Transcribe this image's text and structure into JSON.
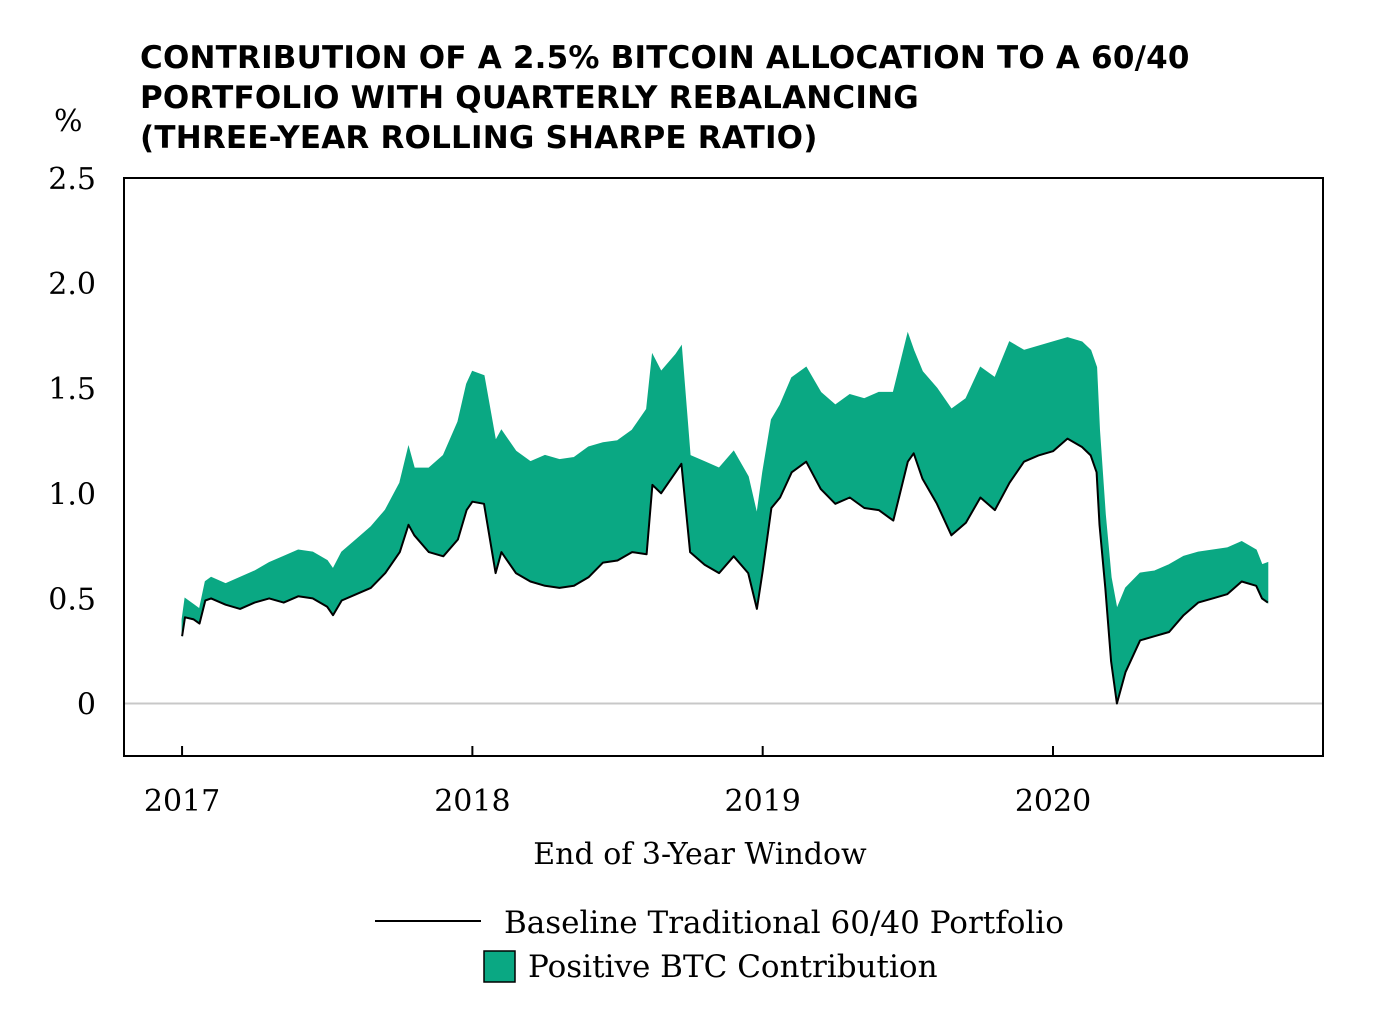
{
  "chart_data": {
    "type": "area",
    "title_lines": [
      "CONTRIBUTION OF A 2.5% BITCOIN ALLOCATION TO A 60/40",
      "PORTFOLIO WITH QUARTERLY REBALANCING",
      "(THREE-YEAR ROLLING SHARPE RATIO)"
    ],
    "ylabel": "%",
    "xlabel": "End of 3-Year Window",
    "ylim": [
      -0.25,
      2.5
    ],
    "xlim": [
      2016.8,
      2020.93
    ],
    "y_ticks": [
      {
        "value": 0,
        "label": "0"
      },
      {
        "value": 0.5,
        "label": "0.5"
      },
      {
        "value": 1.0,
        "label": "1.0"
      },
      {
        "value": 1.5,
        "label": "1.5"
      },
      {
        "value": 2.0,
        "label": "2.0"
      },
      {
        "value": 2.5,
        "label": "2.5"
      }
    ],
    "x_ticks": [
      {
        "value": 2017,
        "label": "2017"
      },
      {
        "value": 2018,
        "label": "2018"
      },
      {
        "value": 2019,
        "label": "2019"
      },
      {
        "value": 2020,
        "label": "2020"
      }
    ],
    "zero_line": true,
    "colors": {
      "baseline": "#000000",
      "contribution": "#0aa883",
      "zero_line": "#c8c8c8"
    },
    "legend": [
      {
        "label": "Baseline Traditional 60/40 Portfolio",
        "kind": "line"
      },
      {
        "label": "Positive BTC Contribution",
        "kind": "area"
      }
    ],
    "x": [
      2017.0,
      2017.01,
      2017.04,
      2017.06,
      2017.08,
      2017.1,
      2017.15,
      2017.2,
      2017.25,
      2017.3,
      2017.35,
      2017.4,
      2017.45,
      2017.5,
      2017.52,
      2017.55,
      2017.6,
      2017.65,
      2017.7,
      2017.75,
      2017.78,
      2017.8,
      2017.85,
      2017.9,
      2017.95,
      2017.98,
      2018.0,
      2018.04,
      2018.08,
      2018.1,
      2018.15,
      2018.2,
      2018.25,
      2018.3,
      2018.35,
      2018.4,
      2018.45,
      2018.5,
      2018.55,
      2018.6,
      2018.62,
      2018.65,
      2018.7,
      2018.72,
      2018.75,
      2018.8,
      2018.85,
      2018.9,
      2018.95,
      2018.98,
      2019.0,
      2019.03,
      2019.06,
      2019.1,
      2019.15,
      2019.2,
      2019.25,
      2019.3,
      2019.35,
      2019.4,
      2019.45,
      2019.5,
      2019.52,
      2019.55,
      2019.6,
      2019.65,
      2019.7,
      2019.75,
      2019.8,
      2019.85,
      2019.9,
      2019.95,
      2020.0,
      2020.05,
      2020.1,
      2020.13,
      2020.15,
      2020.16,
      2020.18,
      2020.2,
      2020.22,
      2020.25,
      2020.3,
      2020.35,
      2020.4,
      2020.45,
      2020.5,
      2020.55,
      2020.6,
      2020.65,
      2020.7,
      2020.72,
      2020.74
    ],
    "series": [
      {
        "name": "Baseline Traditional 60/40 Portfolio",
        "values": [
          0.32,
          0.41,
          0.4,
          0.38,
          0.49,
          0.5,
          0.47,
          0.45,
          0.48,
          0.5,
          0.48,
          0.51,
          0.5,
          0.46,
          0.42,
          0.49,
          0.52,
          0.55,
          0.62,
          0.72,
          0.85,
          0.8,
          0.72,
          0.7,
          0.78,
          0.92,
          0.96,
          0.95,
          0.62,
          0.72,
          0.62,
          0.58,
          0.56,
          0.55,
          0.56,
          0.6,
          0.67,
          0.68,
          0.72,
          0.71,
          1.04,
          1.0,
          1.1,
          1.14,
          0.72,
          0.66,
          0.62,
          0.7,
          0.62,
          0.45,
          0.63,
          0.93,
          0.98,
          1.1,
          1.15,
          1.02,
          0.95,
          0.98,
          0.93,
          0.92,
          0.87,
          1.15,
          1.19,
          1.07,
          0.95,
          0.8,
          0.86,
          0.98,
          0.92,
          1.05,
          1.15,
          1.18,
          1.2,
          1.26,
          1.22,
          1.18,
          1.1,
          0.85,
          0.55,
          0.2,
          0.0,
          0.15,
          0.3,
          0.32,
          0.34,
          0.42,
          0.48,
          0.5,
          0.52,
          0.58,
          0.56,
          0.5,
          0.48
        ]
      },
      {
        "name": "Positive BTC Contribution (upper bound)",
        "values": [
          0.4,
          0.5,
          0.47,
          0.45,
          0.58,
          0.6,
          0.57,
          0.6,
          0.63,
          0.67,
          0.7,
          0.73,
          0.72,
          0.68,
          0.64,
          0.72,
          0.78,
          0.84,
          0.92,
          1.05,
          1.22,
          1.12,
          1.12,
          1.18,
          1.34,
          1.52,
          1.58,
          1.56,
          1.25,
          1.3,
          1.2,
          1.15,
          1.18,
          1.16,
          1.17,
          1.22,
          1.24,
          1.25,
          1.3,
          1.4,
          1.66,
          1.58,
          1.66,
          1.7,
          1.18,
          1.15,
          1.12,
          1.2,
          1.08,
          0.9,
          1.1,
          1.35,
          1.42,
          1.55,
          1.6,
          1.48,
          1.42,
          1.47,
          1.45,
          1.48,
          1.48,
          1.76,
          1.68,
          1.58,
          1.5,
          1.4,
          1.45,
          1.6,
          1.55,
          1.72,
          1.68,
          1.7,
          1.72,
          1.74,
          1.72,
          1.68,
          1.6,
          1.3,
          0.9,
          0.6,
          0.45,
          0.55,
          0.62,
          0.63,
          0.66,
          0.7,
          0.72,
          0.73,
          0.74,
          0.77,
          0.73,
          0.66,
          0.67
        ]
      }
    ]
  }
}
